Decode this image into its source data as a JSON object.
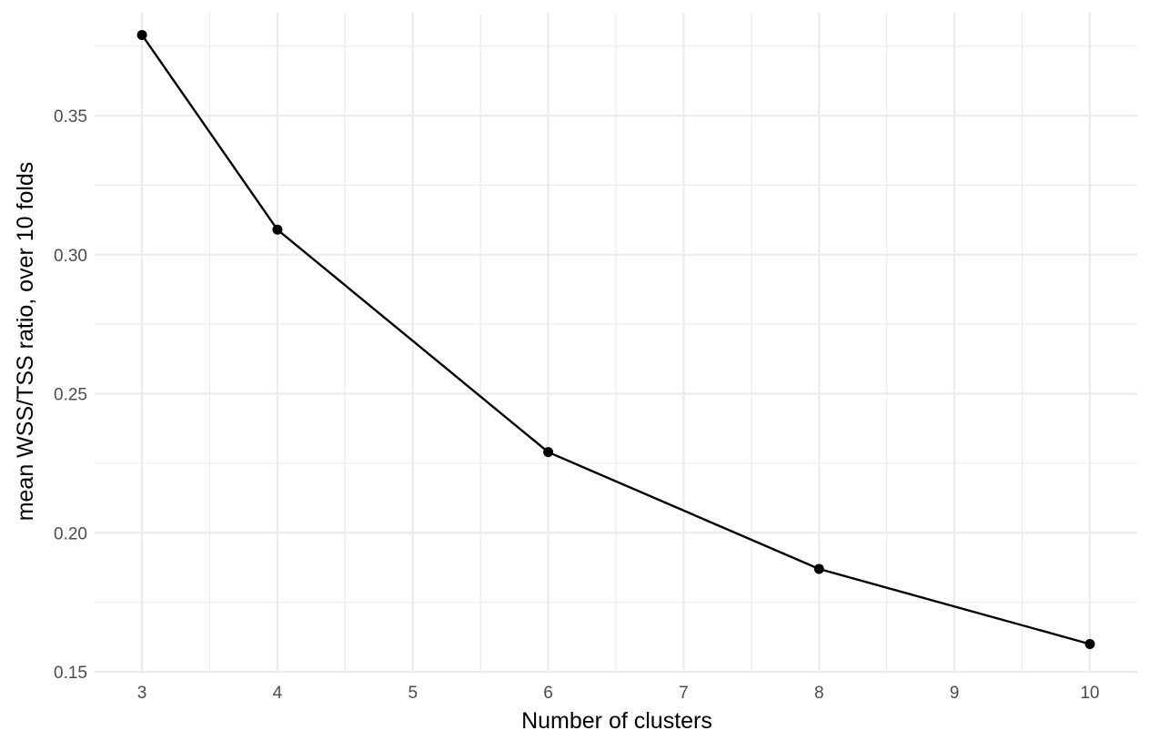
{
  "chart_data": {
    "type": "line",
    "title": "",
    "xlabel": "Number of clusters",
    "ylabel": "mean WSS/TSS ratio, over 10 folds",
    "x": [
      3,
      4,
      6,
      8,
      10
    ],
    "series": [
      {
        "values": [
          0.379,
          0.309,
          0.229,
          0.187,
          0.16
        ]
      }
    ],
    "xlim": [
      2.65,
      10.35
    ],
    "ylim": [
      0.15,
      0.387
    ],
    "x_ticks": [
      3,
      4,
      5,
      6,
      7,
      8,
      9,
      10
    ],
    "x_tick_labels": [
      "3",
      "4",
      "5",
      "6",
      "7",
      "8",
      "9",
      "10"
    ],
    "y_ticks": [
      0.15,
      0.2,
      0.25,
      0.3,
      0.35
    ],
    "y_tick_labels": [
      "0.15",
      "0.20",
      "0.25",
      "0.30",
      "0.35"
    ],
    "grid": true,
    "markers": true,
    "line_color": "#000000",
    "grid_color": "#ebebeb",
    "background": "#ffffff"
  }
}
